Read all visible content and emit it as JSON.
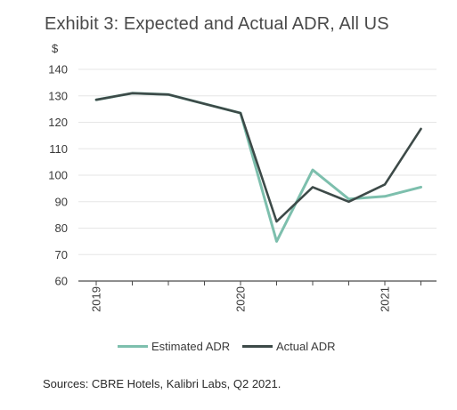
{
  "chart_data": {
    "type": "line",
    "title": "Exhibit 3: Expected and Actual ADR, All US",
    "ylabel": "$",
    "xlabel": "",
    "ylim": [
      60,
      140
    ],
    "yticks": [
      "140",
      "130",
      "120",
      "110",
      "100",
      "90",
      "80",
      "70",
      "60"
    ],
    "xticks": [
      "2019",
      "2020",
      "2021"
    ],
    "grid": true,
    "legend_position": "bottom",
    "x": [
      "2019 Q1",
      "2019 Q2",
      "2019 Q3",
      "2019 Q4",
      "2020 Q1",
      "2020 Q2",
      "2020 Q3",
      "2020 Q4",
      "2021 Q1",
      "2021 Q2"
    ],
    "series": [
      {
        "name": "Estimated ADR",
        "color": "#7dbfad",
        "values": [
          128.5,
          131,
          130.5,
          127,
          123.5,
          75,
          102,
          91,
          92,
          95.5
        ]
      },
      {
        "name": "Actual ADR",
        "color": "#3d4a48",
        "values": [
          128.5,
          131,
          130.5,
          127,
          123.5,
          82.5,
          95.5,
          90,
          96.5,
          117.5
        ]
      }
    ]
  },
  "source": "Sources: CBRE Hotels, Kalibri Labs, Q2 2021."
}
